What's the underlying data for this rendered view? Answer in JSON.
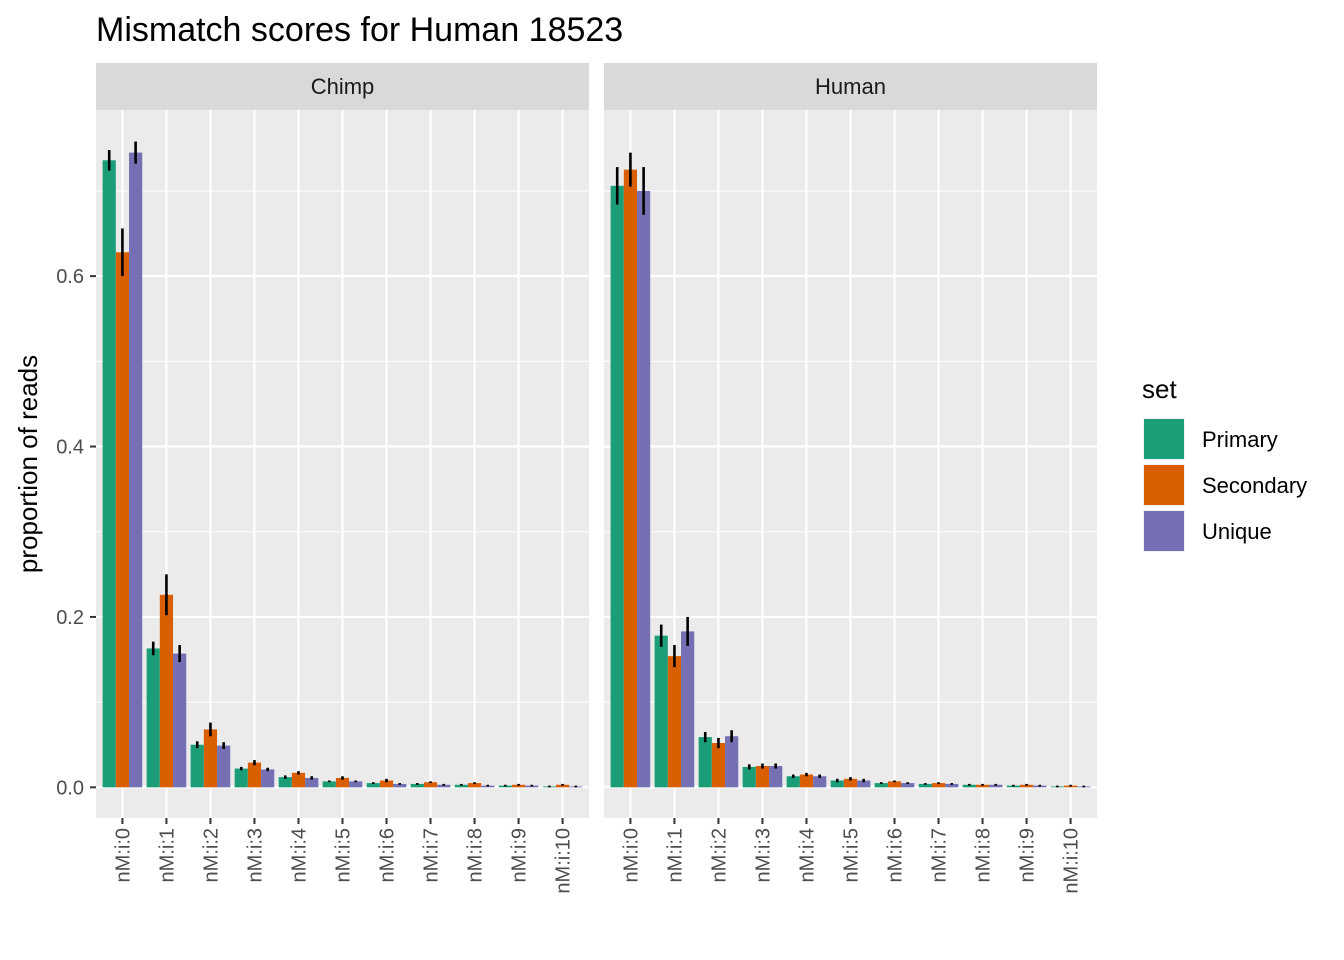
{
  "chart_data": {
    "type": "bar",
    "title": "Mismatch scores for Human 18523",
    "ylabel": "proportion of reads",
    "xlabel": "",
    "ylim": [
      -0.036,
      0.795
    ],
    "yticks": [
      0.0,
      0.2,
      0.4,
      0.6
    ],
    "ytick_labels": [
      "0.0",
      "0.2",
      "0.4",
      "0.6"
    ],
    "grid": true,
    "categories": [
      "nM:i:0",
      "nM:i:1",
      "nM:i:2",
      "nM:i:3",
      "nM:i:4",
      "nM:i:5",
      "nM:i:6",
      "nM:i:7",
      "nM:i:8",
      "nM:i:9",
      "nM:i:10"
    ],
    "legend": {
      "title": "set",
      "position": "right",
      "entries": [
        {
          "name": "Primary",
          "color": "#1b9e77"
        },
        {
          "name": "Secondary",
          "color": "#d95f02"
        },
        {
          "name": "Unique",
          "color": "#7570b3"
        }
      ]
    },
    "facets": [
      {
        "label": "Chimp",
        "series": [
          {
            "name": "Primary",
            "values": [
              0.736,
              0.163,
              0.05,
              0.022,
              0.012,
              0.007,
              0.005,
              0.004,
              0.003,
              0.002,
              0.001
            ],
            "err": [
              0.012,
              0.008,
              0.004,
              0.002,
              0.002,
              0.001,
              0.001,
              0.001,
              0.001,
              0.001,
              0.001
            ]
          },
          {
            "name": "Secondary",
            "values": [
              0.628,
              0.226,
              0.068,
              0.029,
              0.017,
              0.011,
              0.008,
              0.006,
              0.005,
              0.003,
              0.003
            ],
            "err": [
              0.028,
              0.024,
              0.008,
              0.003,
              0.002,
              0.002,
              0.002,
              0.001,
              0.001,
              0.001,
              0.001
            ]
          },
          {
            "name": "Unique",
            "values": [
              0.745,
              0.157,
              0.049,
              0.021,
              0.011,
              0.007,
              0.004,
              0.003,
              0.002,
              0.002,
              0.001
            ],
            "err": [
              0.013,
              0.01,
              0.004,
              0.002,
              0.002,
              0.001,
              0.001,
              0.001,
              0.001,
              0.001,
              0.001
            ]
          }
        ]
      },
      {
        "label": "Human",
        "series": [
          {
            "name": "Primary",
            "values": [
              0.706,
              0.178,
              0.059,
              0.024,
              0.013,
              0.008,
              0.005,
              0.004,
              0.003,
              0.002,
              0.001
            ],
            "err": [
              0.022,
              0.013,
              0.006,
              0.003,
              0.002,
              0.002,
              0.001,
              0.001,
              0.001,
              0.001,
              0.001
            ]
          },
          {
            "name": "Secondary",
            "values": [
              0.725,
              0.154,
              0.052,
              0.025,
              0.015,
              0.01,
              0.007,
              0.005,
              0.003,
              0.003,
              0.002
            ],
            "err": [
              0.02,
              0.013,
              0.006,
              0.003,
              0.002,
              0.002,
              0.001,
              0.001,
              0.001,
              0.001,
              0.001
            ]
          },
          {
            "name": "Unique",
            "values": [
              0.7,
              0.183,
              0.06,
              0.025,
              0.013,
              0.008,
              0.005,
              0.004,
              0.003,
              0.002,
              0.001
            ],
            "err": [
              0.028,
              0.017,
              0.007,
              0.003,
              0.002,
              0.002,
              0.001,
              0.001,
              0.001,
              0.001,
              0.001
            ]
          }
        ]
      }
    ]
  }
}
